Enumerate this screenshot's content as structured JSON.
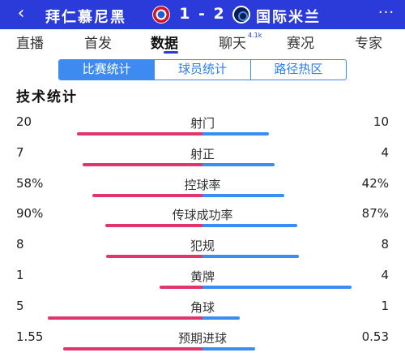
{
  "header": {
    "back_icon": "‹",
    "home_team": "拜仁慕尼黑",
    "score": "1 - 2",
    "away_team": "国际米兰",
    "more_icon": "···",
    "colors": {
      "bar": "#2a3bd9"
    }
  },
  "nav": {
    "items": [
      {
        "label": "直播",
        "sup": ""
      },
      {
        "label": "首发",
        "sup": ""
      },
      {
        "label": "数据",
        "sup": ""
      },
      {
        "label": "聊天",
        "sup": "4.1k"
      },
      {
        "label": "赛况",
        "sup": ""
      },
      {
        "label": "专家",
        "sup": ""
      }
    ],
    "active_index": 2
  },
  "subtabs": {
    "items": [
      "比赛统计",
      "球员统计",
      "路径热区"
    ],
    "active_index": 0
  },
  "section_title": "技术统计",
  "colors": {
    "home_bar": "#e0356d",
    "away_bar": "#3a8ef2"
  },
  "stats": [
    {
      "label": "射门",
      "home": "20",
      "away": "10",
      "home_share": 0.667
    },
    {
      "label": "射正",
      "home": "7",
      "away": "4",
      "home_share": 0.636
    },
    {
      "label": "控球率",
      "home": "58%",
      "away": "42%",
      "home_share": 0.58
    },
    {
      "label": "传球成功率",
      "home": "90%",
      "away": "87%",
      "home_share": 0.508
    },
    {
      "label": "犯规",
      "home": "8",
      "away": "8",
      "home_share": 0.5
    },
    {
      "label": "黄牌",
      "home": "1",
      "away": "4",
      "home_share": 0.2
    },
    {
      "label": "角球",
      "home": "5",
      "away": "1",
      "home_share": 0.833
    },
    {
      "label": "预期进球",
      "home": "1.55",
      "away": "0.53",
      "home_share": 0.745
    }
  ]
}
